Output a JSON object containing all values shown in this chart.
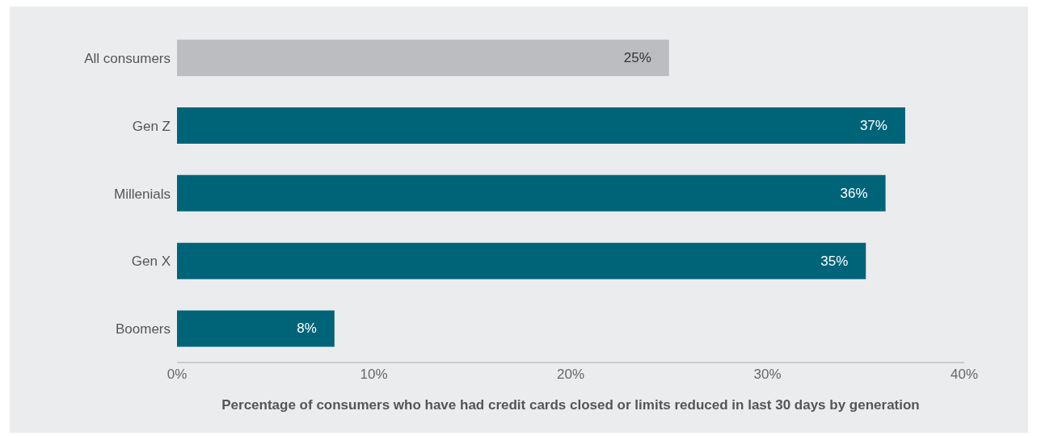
{
  "chart_data": {
    "type": "bar",
    "orientation": "horizontal",
    "xlabel": "Percentage of consumers who have had credit cards closed or limits reduced in last 30 days by generation",
    "categories": [
      "All consumers",
      "Gen Z",
      "Millenials",
      "Gen X",
      "Boomers"
    ],
    "values": [
      25,
      37,
      36,
      35,
      8
    ],
    "colors": [
      "#bcbdc0",
      "#006479",
      "#006479",
      "#006479",
      "#006479"
    ],
    "value_labels": [
      "25%",
      "37%",
      "36%",
      "35%",
      "8%"
    ],
    "xlim": [
      0,
      40
    ],
    "xticks": [
      {
        "value": 0,
        "label": "0%"
      },
      {
        "value": 10,
        "label": "10%"
      },
      {
        "value": 20,
        "label": "20%"
      },
      {
        "value": 30,
        "label": "30%"
      },
      {
        "value": 40,
        "label": "40%"
      }
    ],
    "grid": false,
    "legend": false
  }
}
